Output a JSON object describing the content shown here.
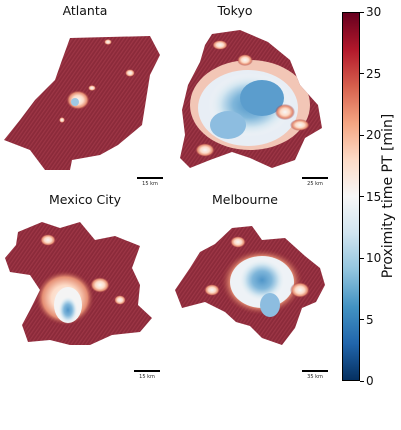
{
  "panels": [
    {
      "title": "Atlanta",
      "scale_label": "15 km"
    },
    {
      "title": "Tokyo",
      "scale_label": "25 km"
    },
    {
      "title": "Mexico City",
      "scale_label": "15 km"
    },
    {
      "title": "Melbourne",
      "scale_label": "35 km"
    }
  ],
  "colorbar": {
    "title": "Proximity time PT [min]",
    "ticks": [
      "0",
      "5",
      "10",
      "15",
      "20",
      "25",
      "30"
    ],
    "min": 0,
    "max": 30,
    "colors": [
      "#053061",
      "#2166ac",
      "#4393c3",
      "#92c5de",
      "#d1e5f0",
      "#f7f7f7",
      "#fddbc7",
      "#f4a582",
      "#d6604d",
      "#b2182b",
      "#67001f"
    ]
  }
}
